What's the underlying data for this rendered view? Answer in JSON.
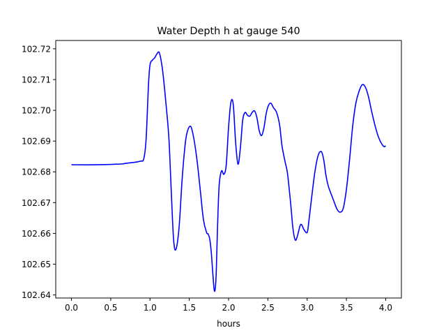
{
  "chart_data": {
    "type": "line",
    "title": "Water Depth h at gauge 540",
    "xlabel": "hours",
    "ylabel": "",
    "xlim": [
      -0.2,
      4.2
    ],
    "ylim": [
      102.639,
      102.7227
    ],
    "xticks": [
      0.0,
      0.5,
      1.0,
      1.5,
      2.0,
      2.5,
      3.0,
      3.5,
      4.0
    ],
    "xtick_labels": [
      "0.0",
      "0.5",
      "1.0",
      "1.5",
      "2.0",
      "2.5",
      "3.0",
      "3.5",
      "4.0"
    ],
    "yticks": [
      102.64,
      102.65,
      102.66,
      102.67,
      102.68,
      102.69,
      102.7,
      102.71,
      102.72
    ],
    "ytick_labels": [
      "102.64",
      "102.65",
      "102.66",
      "102.67",
      "102.68",
      "102.69",
      "102.70",
      "102.71",
      "102.72"
    ],
    "grid": false,
    "series": [
      {
        "color": "#0000ff",
        "x": [
          0.0,
          0.3,
          0.6,
          0.65,
          0.7,
          0.8,
          0.88,
          0.92,
          0.95,
          0.98,
          1.0,
          1.03,
          1.06,
          1.09,
          1.12,
          1.16,
          1.2,
          1.24,
          1.27,
          1.3,
          1.33,
          1.37,
          1.41,
          1.45,
          1.48,
          1.52,
          1.56,
          1.6,
          1.64,
          1.68,
          1.72,
          1.74,
          1.76,
          1.78,
          1.8,
          1.82,
          1.84,
          1.86,
          1.88,
          1.91,
          1.94,
          1.97,
          2.0,
          2.03,
          2.06,
          2.09,
          2.12,
          2.15,
          2.18,
          2.21,
          2.24,
          2.27,
          2.3,
          2.33,
          2.36,
          2.39,
          2.42,
          2.45,
          2.48,
          2.51,
          2.54,
          2.57,
          2.61,
          2.65,
          2.68,
          2.72,
          2.75,
          2.79,
          2.82,
          2.85,
          2.88,
          2.91,
          2.93,
          2.96,
          3.0,
          3.02,
          3.06,
          3.1,
          3.14,
          3.18,
          3.21,
          3.24,
          3.27,
          3.3,
          3.34,
          3.38,
          3.42,
          3.46,
          3.5,
          3.54,
          3.58,
          3.62,
          3.66,
          3.7,
          3.74,
          3.78,
          3.82,
          3.86,
          3.9,
          3.94,
          3.98,
          4.0
        ],
        "y": [
          102.6823,
          102.6823,
          102.6825,
          102.6826,
          102.6828,
          102.6831,
          102.6835,
          102.6842,
          102.6905,
          102.708,
          102.7148,
          102.7163,
          102.7171,
          102.7184,
          102.7186,
          102.713,
          102.703,
          102.691,
          102.674,
          102.658,
          102.6548,
          102.662,
          102.678,
          102.6895,
          102.6935,
          102.6947,
          102.6905,
          102.6834,
          102.674,
          102.6645,
          102.6603,
          102.6598,
          102.6582,
          102.6538,
          102.6468,
          102.6412,
          102.6455,
          102.6625,
          102.6755,
          102.6803,
          102.6792,
          102.6822,
          102.6945,
          102.7027,
          102.7018,
          102.6895,
          102.6825,
          102.6877,
          102.6968,
          102.6993,
          102.6984,
          102.6981,
          102.6993,
          102.6998,
          102.6977,
          102.6934,
          102.6918,
          102.6943,
          102.6991,
          102.7017,
          102.7023,
          102.7009,
          102.6994,
          102.6952,
          102.6885,
          102.6832,
          102.6795,
          102.6698,
          102.6615,
          102.6578,
          102.6595,
          102.6625,
          102.6628,
          102.6612,
          102.6603,
          102.6635,
          102.6722,
          102.6802,
          102.6853,
          102.6866,
          102.6841,
          102.6788,
          102.6753,
          102.6732,
          102.6705,
          102.6679,
          102.6669,
          102.6682,
          102.6743,
          102.6839,
          102.6949,
          102.7023,
          102.7061,
          102.7083,
          102.7076,
          102.7045,
          102.6998,
          102.6955,
          102.6919,
          102.6895,
          102.6882,
          102.6885
        ]
      }
    ]
  }
}
